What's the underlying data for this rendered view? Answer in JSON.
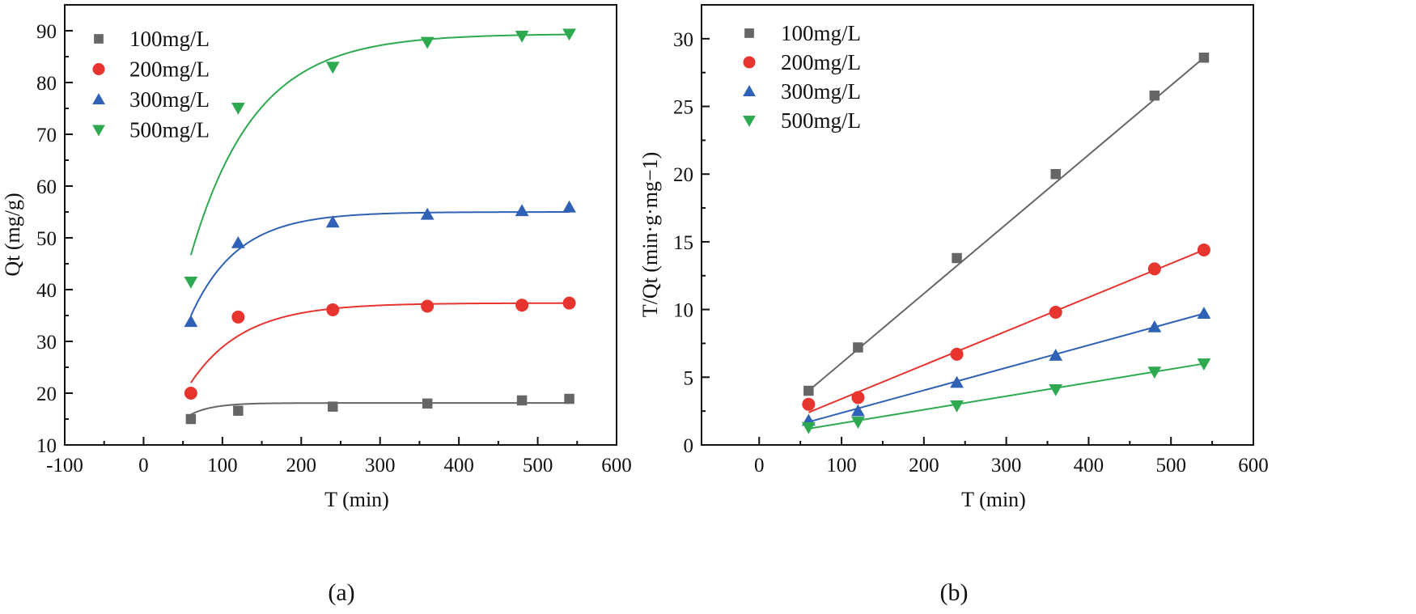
{
  "chart_data": [
    {
      "type": "scatter",
      "panel_label": "(a)",
      "xlabel": "T (min)",
      "ylabel": "Qt (mg/g)",
      "xlim": [
        -100,
        600
      ],
      "ylim": [
        10,
        95
      ],
      "xticks": [
        -100,
        0,
        100,
        200,
        300,
        400,
        500,
        600
      ],
      "xtick_labels": [
        "-100",
        "0",
        "100",
        "200",
        "300",
        "400",
        "500",
        "600"
      ],
      "yticks": [
        10,
        20,
        30,
        40,
        50,
        60,
        70,
        80,
        90
      ],
      "ytick_labels": [
        "10",
        "20",
        "30",
        "40",
        "50",
        "60",
        "70",
        "80",
        "90"
      ],
      "grid": false,
      "legend_position": "top-left",
      "fit": "exponential",
      "x": [
        60,
        120,
        240,
        360,
        480,
        540
      ],
      "series": [
        {
          "name": "100mg/L",
          "marker": "square",
          "color": "#666666",
          "values": [
            15.0,
            16.6,
            17.4,
            18.0,
            18.6,
            18.9
          ],
          "fit_params": [
            18.1,
            0.035
          ]
        },
        {
          "name": "200mg/L",
          "marker": "circle",
          "color": "#e8342f",
          "values": [
            20.0,
            34.7,
            36.1,
            36.8,
            37.0,
            37.4
          ],
          "fit_params": [
            37.4,
            0.0148
          ]
        },
        {
          "name": "300mg/L",
          "marker": "triangle-up",
          "color": "#2f62b6",
          "values": [
            33.8,
            49.0,
            53.0,
            54.5,
            55.2,
            55.9
          ],
          "fit_params": [
            55.0,
            0.0168
          ]
        },
        {
          "name": "500mg/L",
          "marker": "triangle-down",
          "color": "#2daa4f",
          "values": [
            41.5,
            75.1,
            83.0,
            87.8,
            89.0,
            89.4
          ],
          "fit_params": [
            89.4,
            0.0123
          ]
        }
      ]
    },
    {
      "type": "scatter",
      "panel_label": "(b)",
      "xlabel": "T (min)",
      "ylabel": "T/Qt (min·g·mg−1)",
      "xlim": [
        -70,
        600
      ],
      "ylim": [
        0,
        32.5
      ],
      "xticks": [
        0,
        100,
        200,
        300,
        400,
        500,
        600
      ],
      "xtick_labels": [
        "0",
        "100",
        "200",
        "300",
        "400",
        "500",
        "600"
      ],
      "yticks": [
        0,
        5,
        10,
        15,
        20,
        25,
        30
      ],
      "ytick_labels": [
        "0",
        "5",
        "10",
        "15",
        "20",
        "25",
        "30"
      ],
      "grid": false,
      "legend_position": "top-left",
      "fit": "linear",
      "x": [
        60,
        120,
        240,
        360,
        480,
        540
      ],
      "series": [
        {
          "name": "100mg/L",
          "marker": "square",
          "color": "#666666",
          "values": [
            4.0,
            7.2,
            13.8,
            20.0,
            25.8,
            28.6
          ],
          "fit_line": [
            4.0,
            28.6
          ]
        },
        {
          "name": "200mg/L",
          "marker": "circle",
          "color": "#e8342f",
          "values": [
            3.0,
            3.5,
            6.7,
            9.8,
            13.0,
            14.4
          ],
          "fit_line": [
            2.4,
            14.4
          ]
        },
        {
          "name": "300mg/L",
          "marker": "triangle-up",
          "color": "#2f62b6",
          "values": [
            1.8,
            2.5,
            4.6,
            6.6,
            8.7,
            9.7
          ],
          "fit_line": [
            1.7,
            9.7
          ]
        },
        {
          "name": "500mg/L",
          "marker": "triangle-down",
          "color": "#2daa4f",
          "values": [
            1.3,
            1.7,
            2.9,
            4.1,
            5.4,
            6.0
          ],
          "fit_line": [
            1.2,
            6.0
          ]
        }
      ]
    }
  ]
}
